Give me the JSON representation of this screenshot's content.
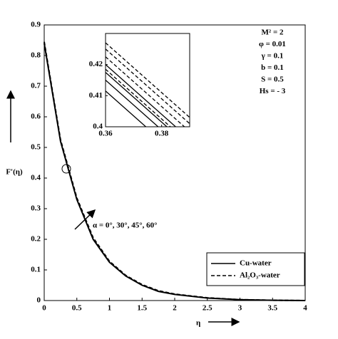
{
  "chart_data": {
    "type": "line",
    "xlabel": "η",
    "ylabel": "F'(η)",
    "x": [
      0,
      0.25,
      0.5,
      0.75,
      1,
      1.25,
      1.5,
      1.75,
      2,
      2.5,
      3,
      3.5,
      4
    ],
    "series": [
      {
        "name": "Cu-water",
        "style": "solid",
        "color": "#000000",
        "values": [
          0.84,
          0.52,
          0.33,
          0.2,
          0.125,
          0.08,
          0.05,
          0.03,
          0.02,
          0.008,
          0.003,
          0.001,
          0
        ]
      },
      {
        "name": "Al₂O₃-water",
        "style": "dashed",
        "color": "#000000",
        "values": [
          0.845,
          0.525,
          0.335,
          0.205,
          0.128,
          0.082,
          0.052,
          0.032,
          0.021,
          0.009,
          0.003,
          0.001,
          0
        ]
      }
    ],
    "xlim": [
      0,
      4
    ],
    "ylim": [
      0,
      0.9
    ],
    "xticks": [
      0,
      0.5,
      1,
      1.5,
      2,
      2.5,
      3,
      3.5,
      4
    ],
    "yticks": [
      0,
      0.1,
      0.2,
      0.3,
      0.4,
      0.5,
      0.6,
      0.7,
      0.8,
      0.9
    ],
    "legend": "lower right",
    "annotations": [
      "M² = 2",
      "φ = 0.01",
      "γ = 0.1",
      "b = 0.1",
      "S = 0.5",
      "Hs = - 3"
    ],
    "arrow_label": "α = 0°, 30°, 45°, 60°",
    "inset": {
      "x": [
        0.36,
        0.39
      ],
      "xlim": [
        0.36,
        0.39
      ],
      "ylim": [
        0.4,
        0.43
      ],
      "xticks": [
        0.36,
        0.38
      ],
      "yticks": [
        0.4,
        0.41,
        0.42
      ],
      "series": [
        {
          "style": "solid",
          "values": [
            0.4115,
            0.3875
          ]
        },
        {
          "style": "solid",
          "values": [
            0.415,
            0.391
          ]
        },
        {
          "style": "solid",
          "values": [
            0.4175,
            0.3935
          ]
        },
        {
          "style": "solid",
          "values": [
            0.42,
            0.396
          ]
        },
        {
          "style": "dashed",
          "values": [
            0.4185,
            0.3945
          ]
        },
        {
          "style": "dashed",
          "values": [
            0.4225,
            0.3985
          ]
        },
        {
          "style": "dashed",
          "values": [
            0.425,
            0.401
          ]
        },
        {
          "style": "dashed",
          "values": [
            0.427,
            0.403
          ]
        }
      ]
    }
  }
}
